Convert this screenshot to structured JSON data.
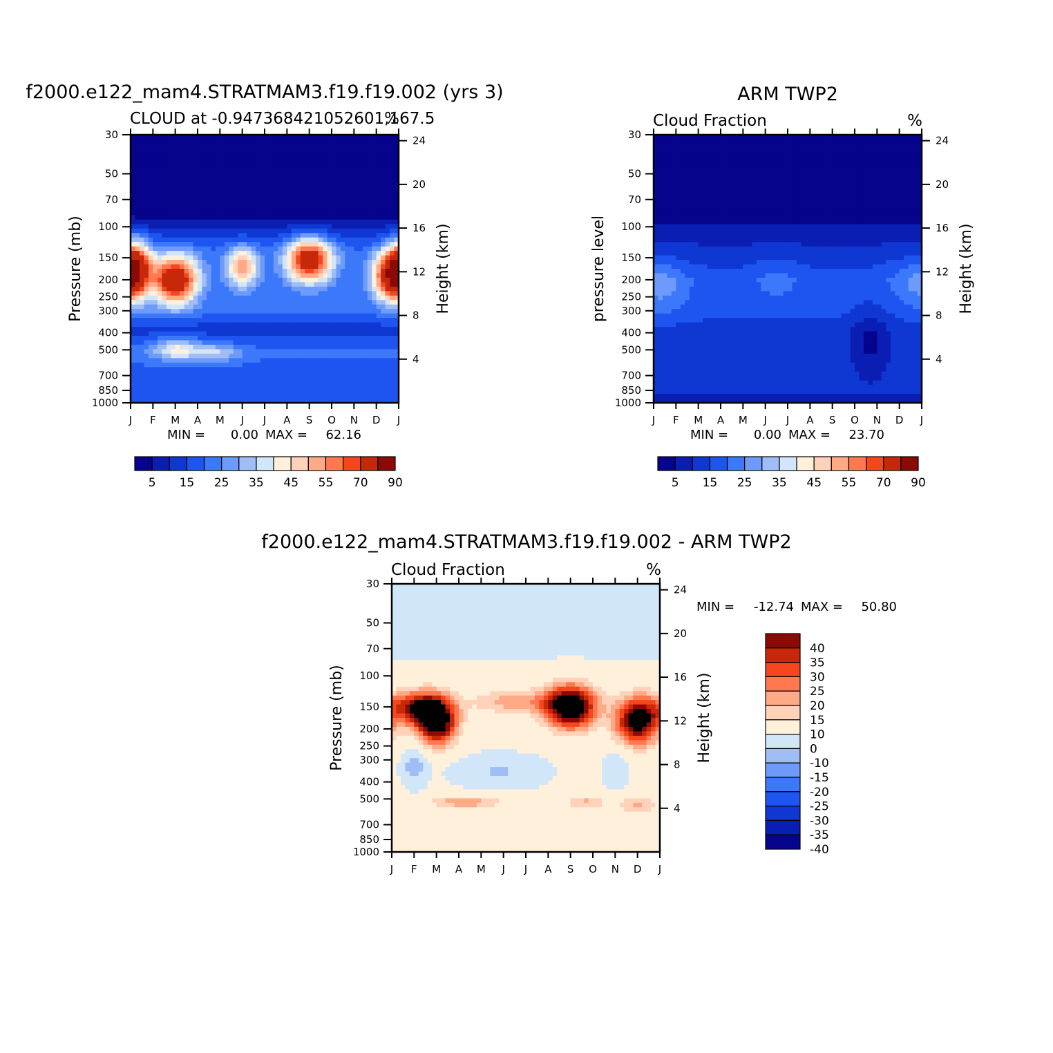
{
  "palettes": {
    "abs": [
      "#06038c",
      "#0a1eb4",
      "#0f37d2",
      "#1e55f0",
      "#3c78fa",
      "#6e9bfa",
      "#a0bef5",
      "#d2e6fa",
      "#fff0dc",
      "#ffd2b9",
      "#ffaa87",
      "#ff7850",
      "#f5461e",
      "#c8280a",
      "#8c0a05"
    ],
    "diff": [
      "#06038c",
      "#0a1eb4",
      "#0f37d2",
      "#1e55f0",
      "#3c78fa",
      "#6e9bfa",
      "#a0bef5",
      "#d2e6fa",
      "#fff0dc",
      "#ffd2b9",
      "#ffaa87",
      "#ff7850",
      "#f5461e",
      "#c8280a",
      "#8c0a05"
    ]
  },
  "chart_data": [
    {
      "type": "heatmap",
      "id": "model",
      "title": "f2000.e122_mam4.STRATMAM3.f19.f19.002 (yrs 3)",
      "subtitle_left": "CLOUD at -0.947368421052601,167.5",
      "subtitle_right": "%",
      "ylabel": "Pressure (mb)",
      "ylabel_right": "Height (km)",
      "x_ticks": [
        "J",
        "F",
        "M",
        "A",
        "M",
        "J",
        "J",
        "A",
        "S",
        "O",
        "N",
        "D",
        "J"
      ],
      "y_ticks": [
        30,
        50,
        70,
        100,
        150,
        200,
        250,
        300,
        400,
        500,
        700,
        850,
        1000
      ],
      "y_right_ticks": [
        24,
        20,
        16,
        12,
        8,
        4
      ],
      "stat": {
        "min_label": "MIN =",
        "min": "0.00",
        "max_label": "MAX =",
        "max": "62.16"
      },
      "colorbar": {
        "orientation": "horizontal",
        "labels": [
          "5",
          "15",
          "25",
          "35",
          "45",
          "55",
          "70",
          "90"
        ],
        "palette": "abs"
      },
      "levels": [
        2.5,
        7.5,
        12.5,
        17.5,
        22.5,
        27.5,
        32.5,
        37.5,
        42.5,
        47.5,
        52.5,
        57.5,
        62.5,
        80
      ],
      "blobs": [
        {
          "x": 2.0,
          "y": 200,
          "amp": 58,
          "wx": 0.7,
          "wy": 0.22
        },
        {
          "x": 0.2,
          "y": 170,
          "amp": 44,
          "wx": 0.5,
          "wy": 0.25
        },
        {
          "x": 8.0,
          "y": 155,
          "amp": 55,
          "wx": 0.7,
          "wy": 0.2
        },
        {
          "x": 11.7,
          "y": 190,
          "amp": 52,
          "wx": 0.6,
          "wy": 0.22
        },
        {
          "x": 5.0,
          "y": 170,
          "amp": 34,
          "wx": 0.5,
          "wy": 0.18
        },
        {
          "x": 2.1,
          "y": 500,
          "amp": 22,
          "wx": 0.8,
          "wy": 0.1
        },
        {
          "x": 4.0,
          "y": 520,
          "amp": 14,
          "wx": 0.7,
          "wy": 0.08
        }
      ],
      "base": [
        {
          "p": 30,
          "v": 0.5
        },
        {
          "p": 90,
          "v": 1
        },
        {
          "p": 110,
          "v": 10
        },
        {
          "p": 140,
          "v": 18
        },
        {
          "p": 300,
          "v": 18
        },
        {
          "p": 380,
          "v": 10
        },
        {
          "p": 500,
          "v": 18
        },
        {
          "p": 700,
          "v": 16
        },
        {
          "p": 850,
          "v": 13
        },
        {
          "p": 970,
          "v": 15
        },
        {
          "p": 1000,
          "v": 40
        }
      ]
    },
    {
      "type": "heatmap",
      "id": "obs",
      "title": "ARM TWP2",
      "subtitle_left": "Cloud Fraction",
      "subtitle_right": "%",
      "ylabel": "pressure level",
      "ylabel_right": "Height (km)",
      "x_ticks": [
        "J",
        "F",
        "M",
        "A",
        "M",
        "J",
        "J",
        "A",
        "S",
        "O",
        "N",
        "D",
        "J"
      ],
      "y_ticks": [
        30,
        50,
        70,
        100,
        150,
        200,
        250,
        300,
        400,
        500,
        700,
        850,
        1000
      ],
      "y_right_ticks": [
        24,
        20,
        16,
        12,
        8,
        4
      ],
      "stat": {
        "min_label": "MIN =",
        "min": "0.00",
        "max_label": "MAX =",
        "max": "23.70"
      },
      "colorbar": {
        "orientation": "horizontal",
        "labels": [
          "5",
          "15",
          "25",
          "35",
          "45",
          "55",
          "70",
          "90"
        ],
        "palette": "abs"
      },
      "levels": [
        2.5,
        7.5,
        12.5,
        17.5,
        22.5,
        27.5,
        32.5,
        37.5,
        42.5,
        47.5,
        52.5,
        57.5,
        62.5,
        80
      ],
      "blobs": [
        {
          "x": 0.5,
          "y": 220,
          "amp": 8,
          "wx": 0.8,
          "wy": 0.25
        },
        {
          "x": 5.5,
          "y": 200,
          "amp": 5,
          "wx": 0.7,
          "wy": 0.2
        },
        {
          "x": 9.7,
          "y": 450,
          "amp": -9,
          "wx": 0.6,
          "wy": 0.3
        },
        {
          "x": 11.5,
          "y": 200,
          "amp": 5,
          "wx": 0.8,
          "wy": 0.2
        }
      ],
      "base": [
        {
          "p": 30,
          "v": 0.5
        },
        {
          "p": 90,
          "v": 1.5
        },
        {
          "p": 130,
          "v": 8
        },
        {
          "p": 200,
          "v": 15
        },
        {
          "p": 300,
          "v": 14
        },
        {
          "p": 400,
          "v": 10
        },
        {
          "p": 600,
          "v": 10
        },
        {
          "p": 850,
          "v": 9
        },
        {
          "p": 1000,
          "v": 4
        }
      ]
    },
    {
      "type": "heatmap",
      "id": "diff",
      "title": "f2000.e122_mam4.STRATMAM3.f19.f19.002 - ARM TWP2",
      "subtitle_left": "Cloud Fraction",
      "subtitle_right": "%",
      "ylabel": "Pressure (mb)",
      "ylabel_right": "Height (km)",
      "x_ticks": [
        "J",
        "F",
        "M",
        "A",
        "M",
        "J",
        "J",
        "A",
        "S",
        "O",
        "N",
        "D",
        "J"
      ],
      "y_ticks": [
        30,
        50,
        70,
        100,
        150,
        200,
        250,
        300,
        400,
        500,
        700,
        850,
        1000
      ],
      "y_right_ticks": [
        24,
        20,
        16,
        12,
        8,
        4
      ],
      "stat": {
        "min_label": "MIN =",
        "min": "-12.74",
        "max_label": "MAX =",
        "max": "50.80"
      },
      "colorbar": {
        "orientation": "vertical",
        "labels": [
          "40",
          "35",
          "30",
          "25",
          "20",
          "15",
          "10",
          "0",
          "-10",
          "-15",
          "-20",
          "-25",
          "-30",
          "-35",
          "-40"
        ],
        "palette": "diff"
      },
      "levels": [
        -40,
        -35,
        -30,
        -25,
        -20,
        -15,
        -10,
        0,
        10,
        15,
        20,
        25,
        30,
        35,
        40
      ],
      "blobs": [
        {
          "x": 2.0,
          "y": 180,
          "amp": 48,
          "wx": 0.65,
          "wy": 0.22
        },
        {
          "x": 1.0,
          "y": 150,
          "amp": 30,
          "wx": 0.8,
          "wy": 0.15
        },
        {
          "x": 8.0,
          "y": 150,
          "amp": 50,
          "wx": 0.8,
          "wy": 0.2
        },
        {
          "x": 11.0,
          "y": 180,
          "amp": 45,
          "wx": 0.7,
          "wy": 0.22
        },
        {
          "x": 5.5,
          "y": 140,
          "amp": 15,
          "wx": 1.4,
          "wy": 0.12
        },
        {
          "x": 1.0,
          "y": 330,
          "amp": -18,
          "wx": 0.4,
          "wy": 0.18
        },
        {
          "x": 10.0,
          "y": 340,
          "amp": -12,
          "wx": 0.4,
          "wy": 0.18
        },
        {
          "x": 4.8,
          "y": 350,
          "amp": -14,
          "wx": 1.5,
          "wy": 0.16
        },
        {
          "x": 3.3,
          "y": 520,
          "amp": 16,
          "wx": 1.2,
          "wy": 0.06
        },
        {
          "x": 8.7,
          "y": 520,
          "amp": 12,
          "wx": 0.7,
          "wy": 0.07
        },
        {
          "x": 11.0,
          "y": 540,
          "amp": 12,
          "wx": 0.7,
          "wy": 0.08
        }
      ],
      "base": [
        {
          "p": 30,
          "v": -5
        },
        {
          "p": 70,
          "v": -3
        },
        {
          "p": 90,
          "v": 3
        },
        {
          "p": 300,
          "v": 3
        },
        {
          "p": 1000,
          "v": 4
        }
      ]
    }
  ]
}
